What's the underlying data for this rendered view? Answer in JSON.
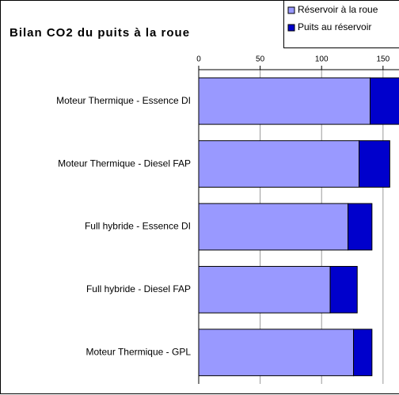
{
  "chart_data": {
    "type": "stacked_bar_horizontal",
    "title": "Bilan CO2 du puits à la roue",
    "categories": [
      "Moteur Thermique - Essence DI",
      "Moteur Thermique - Diesel FAP",
      "Full hybride - Essence DI",
      "Full hybride - Diesel FAP",
      "Moteur Thermique - GPL"
    ],
    "series": [
      {
        "name": "Réservoir à la roue",
        "color": "#9999ff",
        "values": [
          139.5,
          130.5,
          121.5,
          107,
          126
        ]
      },
      {
        "name": "Puits au réservoir",
        "color": "#0000cc",
        "values": [
          25,
          25,
          19.5,
          22,
          15
        ]
      }
    ],
    "xlim": [
      0,
      163
    ],
    "xticks": [
      0,
      50,
      100,
      150
    ],
    "grid": true
  }
}
